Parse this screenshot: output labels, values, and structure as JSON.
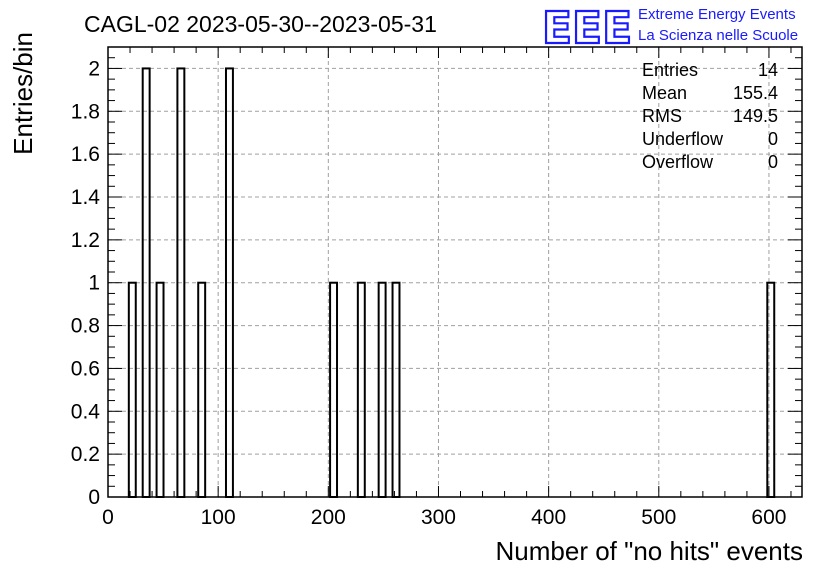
{
  "chart_data": {
    "type": "bar",
    "title": "CAGL-02 2023-05-30--2023-05-31",
    "xlabel": "Number of \"no hits\" events",
    "ylabel": "Entries/bin",
    "xlim": [
      0,
      630
    ],
    "ylim": [
      0,
      2.1
    ],
    "x_ticks": [
      0,
      100,
      200,
      300,
      400,
      500,
      600
    ],
    "y_ticks": [
      0,
      0.2,
      0.4,
      0.6,
      0.8,
      1,
      1.2,
      1.4,
      1.6,
      1.8,
      2
    ],
    "grid": true,
    "bin_width": 6.3,
    "bins": [
      {
        "x": 22.05,
        "count": 1
      },
      {
        "x": 34.65,
        "count": 2
      },
      {
        "x": 47.25,
        "count": 1
      },
      {
        "x": 66.15,
        "count": 2
      },
      {
        "x": 85.05,
        "count": 1
      },
      {
        "x": 110.25,
        "count": 2
      },
      {
        "x": 204.75,
        "count": 1
      },
      {
        "x": 229.95,
        "count": 1
      },
      {
        "x": 248.85,
        "count": 1
      },
      {
        "x": 261.45,
        "count": 1
      },
      {
        "x": 601.65,
        "count": 1
      }
    ],
    "stats": [
      {
        "label": "Entries",
        "value": "14"
      },
      {
        "label": "Mean",
        "value": "155.4"
      },
      {
        "label": "RMS",
        "value": "149.5"
      },
      {
        "label": "Underflow",
        "value": "0"
      },
      {
        "label": "Overflow",
        "value": "0"
      }
    ],
    "colors": {
      "bars": "#000000",
      "grid": "#a0a0a0",
      "logo": "#1a1aff"
    }
  },
  "logo": {
    "mark": "EEE",
    "line1": "Extreme Energy Events",
    "line2": "La Scienza nelle Scuole"
  }
}
